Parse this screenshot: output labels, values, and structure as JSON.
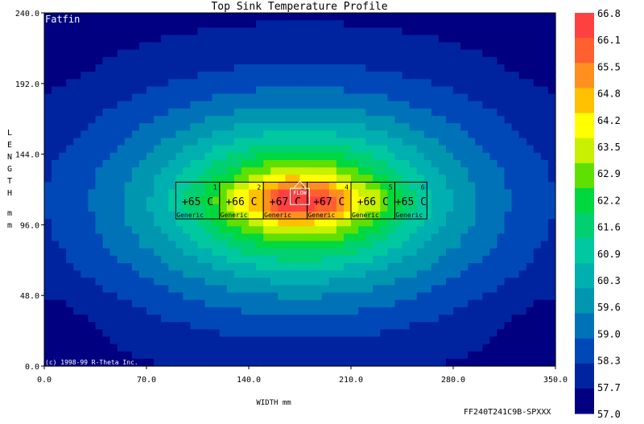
{
  "chart_data": {
    "type": "heatmap",
    "title": "Top Sink Temperature Profile",
    "xlabel": "WIDTH mm",
    "ylabel": "LENGTH mm",
    "xlim": [
      0,
      350
    ],
    "ylim": [
      0,
      240
    ],
    "x_ticks": [
      "0.0",
      "70.0",
      "140.0",
      "210.0",
      "280.0",
      "350.0"
    ],
    "y_ticks": [
      "0.0",
      "48.0",
      "96.0",
      "144.0",
      "192.0",
      "240.0"
    ],
    "colorbar": {
      "min": 57.0,
      "max": 66.8,
      "labels": [
        "66.8",
        "66.1",
        "65.5",
        "64.8",
        "64.2",
        "63.5",
        "62.9",
        "62.2",
        "61.6",
        "60.9",
        "60.3",
        "59.6",
        "59.0",
        "58.3",
        "57.7",
        "57.0"
      ],
      "colors": [
        "#000080",
        "#0024a0",
        "#0048b8",
        "#0073b8",
        "#0096b0",
        "#00b0b0",
        "#00c8a0",
        "#00d070",
        "#00d840",
        "#60e000",
        "#c8f000",
        "#ffff00",
        "#ffc000",
        "#ff9020",
        "#ff6030",
        "#ff4040"
      ]
    },
    "components": [
      {
        "id": "1",
        "label": "+65 C",
        "name": "Generic",
        "x": [
          90,
          120
        ],
        "y": [
          100,
          125
        ],
        "temp": 65
      },
      {
        "id": "2",
        "label": "+66 C",
        "name": "Generic",
        "x": [
          120,
          150
        ],
        "y": [
          100,
          125
        ],
        "temp": 66
      },
      {
        "id": "3",
        "label": "+67 C",
        "name": "Generic",
        "x": [
          150,
          180
        ],
        "y": [
          100,
          125
        ],
        "temp": 67
      },
      {
        "id": "4",
        "label": "+67 C",
        "name": "Generic",
        "x": [
          180,
          210
        ],
        "y": [
          100,
          125
        ],
        "temp": 67
      },
      {
        "id": "5",
        "label": "+66 C",
        "name": "Generic",
        "x": [
          210,
          240
        ],
        "y": [
          100,
          125
        ],
        "temp": 66
      },
      {
        "id": "6",
        "label": "+65 C",
        "name": "Generic",
        "x": [
          240,
          262
        ],
        "y": [
          100,
          125
        ],
        "temp": 65
      }
    ],
    "flow_label": "FLOW",
    "annotations": {
      "product": "Fatfin",
      "copyright": "(c) 1998-99 R-Theta Inc.",
      "part_number": "FF240T241C9B-SPXXX"
    }
  }
}
